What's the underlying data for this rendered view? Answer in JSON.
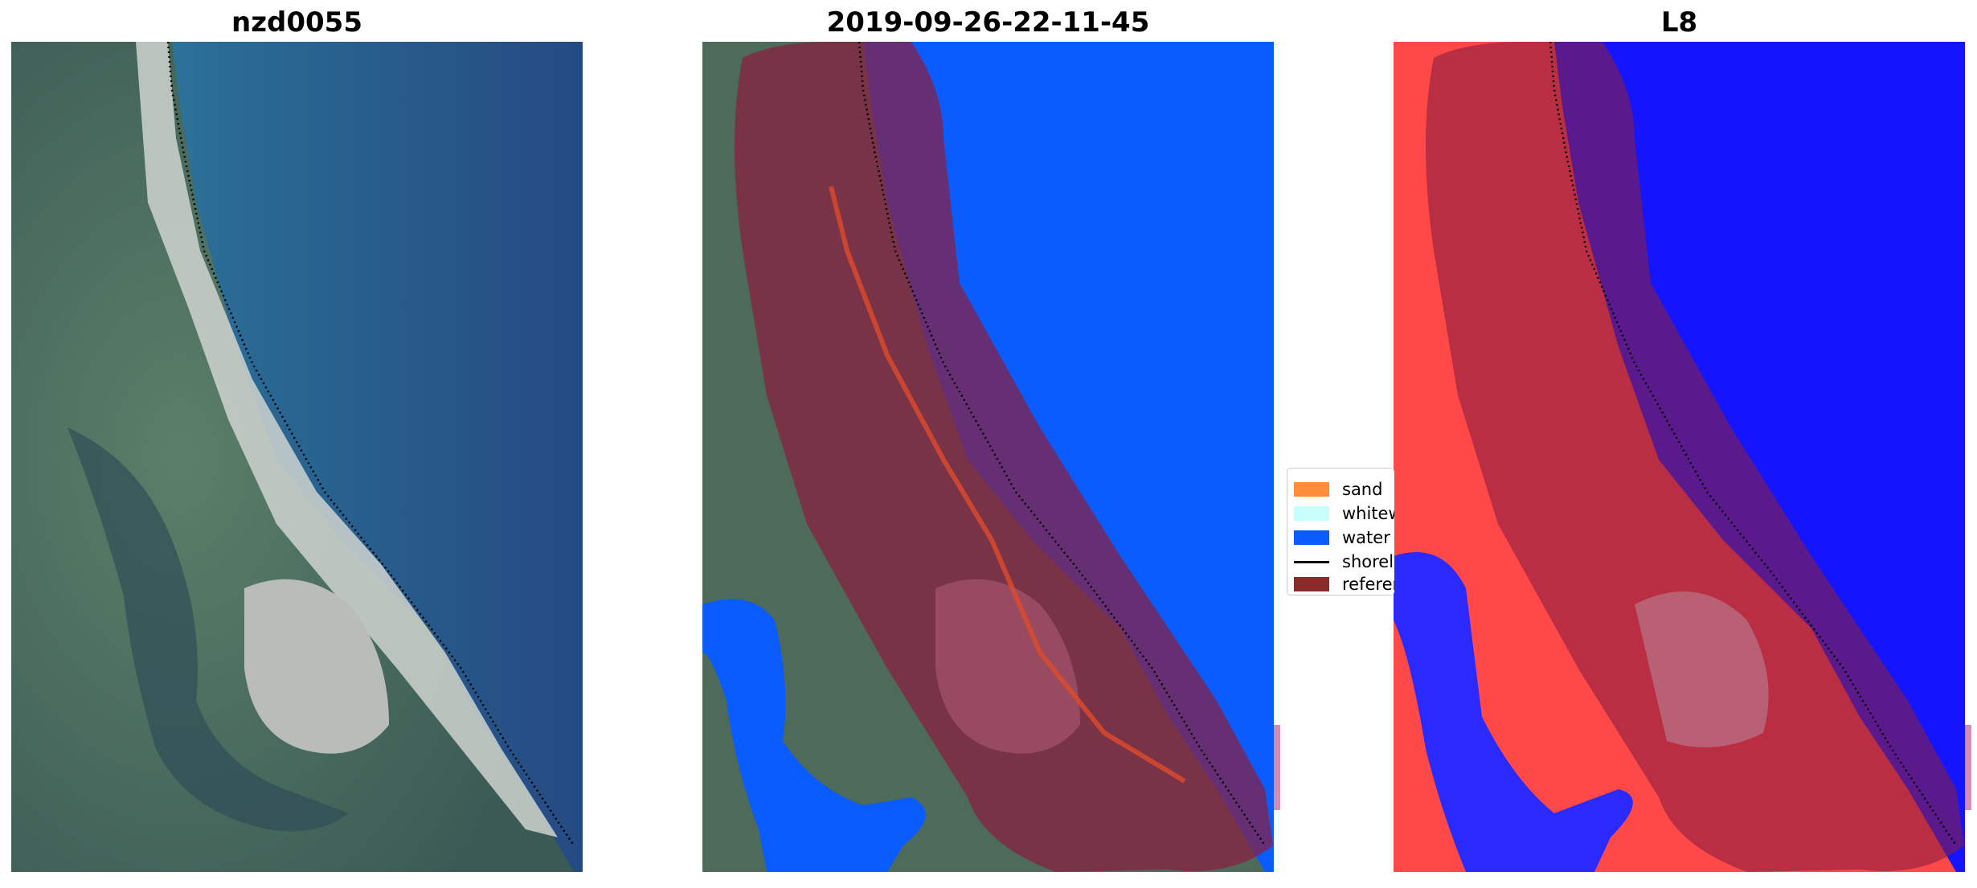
{
  "panels": [
    {
      "title": "nzd0055",
      "kind": "rgb"
    },
    {
      "title": "2019-09-26-22-11-45",
      "kind": "classified"
    },
    {
      "title": "L8",
      "kind": "index"
    }
  ],
  "legend": {
    "items": [
      {
        "label": "sand",
        "color": "#ff8c3a",
        "type": "patch"
      },
      {
        "label": "whitew",
        "color": "#c8fffb",
        "type": "patch"
      },
      {
        "label": "water",
        "color": "#0a5cff",
        "type": "patch"
      },
      {
        "label": "shorel",
        "color": "#000000",
        "type": "line"
      },
      {
        "label": "referer",
        "color": "#8b2a2a",
        "type": "patch"
      }
    ]
  },
  "colors": {
    "water_class": "#0a5cff",
    "reference_buffer": "#8b1e3f",
    "sand_class": "#e04a2a",
    "index_high": "#ff3030",
    "index_low": "#1010ff",
    "ocean_rgb": "#2a4f86",
    "land_rgb": "#4d6a5a"
  }
}
